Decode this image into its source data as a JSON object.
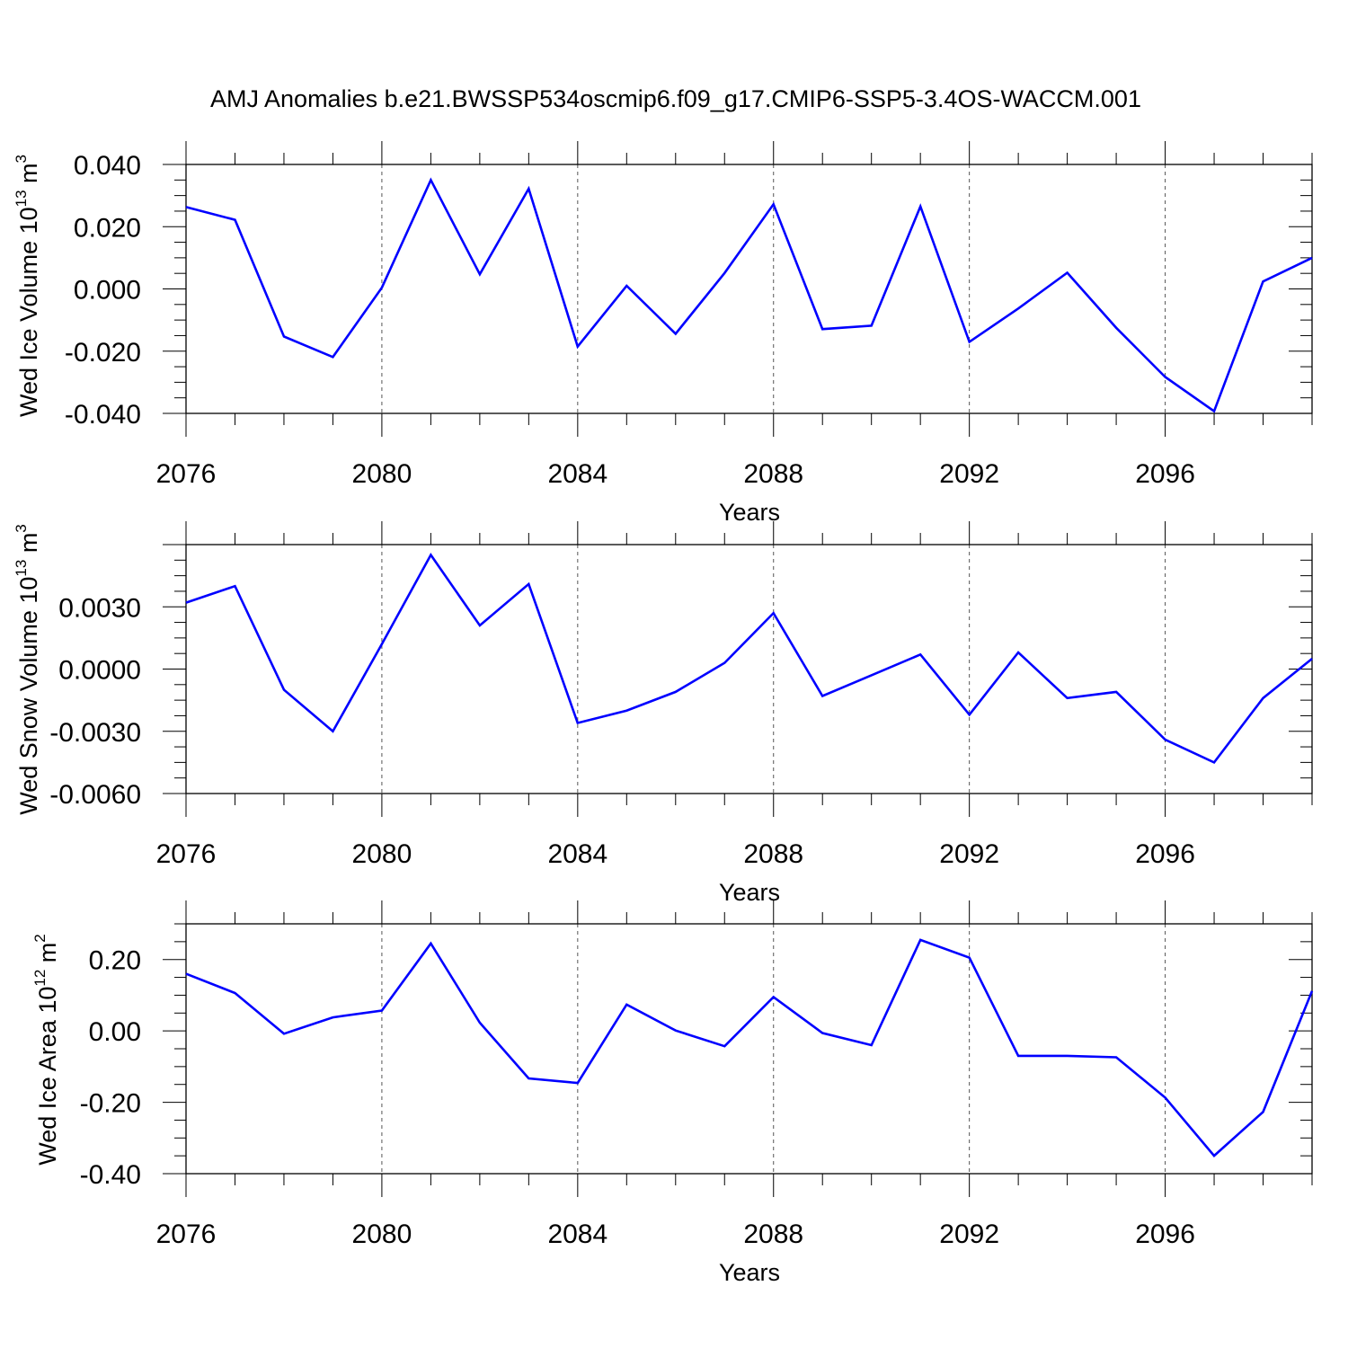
{
  "title": "AMJ Anomalies b.e21.BWSSP534oscmip6.f09_g17.CMIP6-SSP5-3.4OS-WACCM.001",
  "line_color": "#0000ff",
  "chart_data": [
    {
      "type": "line",
      "ylabel": "Wed Ice Volume 10",
      "ylabel_exponent": "13",
      "ylabel_unit": "m",
      "ylabel_unit_power": "3",
      "xlabel": "Years",
      "xlim": [
        2076,
        2099
      ],
      "ylim": [
        -0.04,
        0.04
      ],
      "yticks": [
        -0.04,
        -0.02,
        0.0,
        0.02,
        0.04
      ],
      "ytick_labels": [
        "-0.040",
        "-0.020",
        "0.000",
        "0.020",
        "0.040"
      ],
      "xticks": [
        2076,
        2080,
        2084,
        2088,
        2092,
        2096
      ],
      "xtick_labels": [
        "2076",
        "2080",
        "2084",
        "2088",
        "2092",
        "2096"
      ],
      "grid": "vertical dashed at major x ticks",
      "x": [
        2076,
        2077,
        2078,
        2079,
        2080,
        2081,
        2082,
        2083,
        2084,
        2085,
        2086,
        2087,
        2088,
        2089,
        2090,
        2091,
        2092,
        2093,
        2094,
        2095,
        2096,
        2097,
        2098,
        2099
      ],
      "values": [
        0.0263,
        0.0222,
        -0.0153,
        -0.0219,
        0.0004,
        0.035,
        0.0047,
        0.0322,
        -0.0185,
        0.001,
        -0.0144,
        0.0051,
        0.0272,
        -0.0129,
        -0.0118,
        0.0265,
        -0.017,
        -0.0063,
        0.0052,
        -0.0125,
        -0.0283,
        -0.0393,
        0.0024,
        0.01
      ]
    },
    {
      "type": "line",
      "ylabel": "Wed Snow Volume 10",
      "ylabel_exponent": "13",
      "ylabel_unit": "m",
      "ylabel_unit_power": "3",
      "xlabel": "Years",
      "xlim": [
        2076,
        2099
      ],
      "ylim": [
        -0.006,
        0.006
      ],
      "yticks": [
        -0.006,
        -0.003,
        0.0,
        0.003
      ],
      "ytick_labels": [
        "-0.0060",
        "-0.0030",
        "0.0000",
        "0.0030"
      ],
      "xticks": [
        2076,
        2080,
        2084,
        2088,
        2092,
        2096
      ],
      "xtick_labels": [
        "2076",
        "2080",
        "2084",
        "2088",
        "2092",
        "2096"
      ],
      "grid": "vertical dashed at major x ticks",
      "x": [
        2076,
        2077,
        2078,
        2079,
        2080,
        2081,
        2082,
        2083,
        2084,
        2085,
        2086,
        2087,
        2088,
        2089,
        2090,
        2091,
        2092,
        2093,
        2094,
        2095,
        2096,
        2097,
        2098,
        2099
      ],
      "values": [
        0.0032,
        0.004,
        -0.001,
        -0.003,
        0.0012,
        0.0055,
        0.0021,
        0.0041,
        -0.0026,
        -0.002,
        -0.0011,
        0.0003,
        0.0027,
        -0.0013,
        -0.0003,
        0.0007,
        -0.0022,
        0.0008,
        -0.0014,
        -0.0011,
        -0.0034,
        -0.0045,
        -0.0014,
        0.0005
      ]
    },
    {
      "type": "line",
      "ylabel": "Wed Ice Area 10",
      "ylabel_exponent": "12",
      "ylabel_unit": "m",
      "ylabel_unit_power": "2",
      "xlabel": "Years",
      "xlim": [
        2076,
        2099
      ],
      "ylim": [
        -0.4,
        0.3
      ],
      "yticks": [
        -0.4,
        -0.2,
        0.0,
        0.2
      ],
      "ytick_labels": [
        "-0.40",
        "-0.20",
        "0.00",
        "0.20"
      ],
      "xticks": [
        2076,
        2080,
        2084,
        2088,
        2092,
        2096
      ],
      "xtick_labels": [
        "2076",
        "2080",
        "2084",
        "2088",
        "2092",
        "2096"
      ],
      "grid": "vertical dashed at major x ticks",
      "x": [
        2076,
        2077,
        2078,
        2079,
        2080,
        2081,
        2082,
        2083,
        2084,
        2085,
        2086,
        2087,
        2088,
        2089,
        2090,
        2091,
        2092,
        2093,
        2094,
        2095,
        2096,
        2097,
        2098,
        2099
      ],
      "values": [
        0.16,
        0.106,
        -0.008,
        0.038,
        0.057,
        0.245,
        0.023,
        -0.133,
        -0.146,
        0.074,
        0.001,
        -0.043,
        0.095,
        -0.006,
        -0.04,
        0.255,
        0.205,
        -0.07,
        -0.07,
        -0.074,
        -0.187,
        -0.35,
        -0.227,
        0.112
      ]
    }
  ]
}
